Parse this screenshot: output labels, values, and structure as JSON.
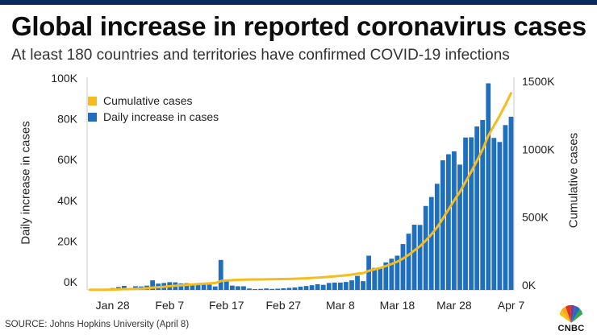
{
  "header": {
    "title": "Global increase in reported coronavirus cases",
    "subtitle": "At least 180 countries and territories have confirmed COVID-19 infections"
  },
  "source": "SOURCE: Johns Hopkins University (April 8)",
  "logo": {
    "text": "CNBC",
    "icon": "peacock-icon"
  },
  "colors": {
    "bars": "#1f6fbf",
    "line": "#f5bc1c",
    "topbar": "#0a2a5c"
  },
  "chart_data": {
    "type": "bar",
    "title": "Global increase in reported coronavirus cases",
    "ylabel": "Daily increase in cases",
    "y2label": "Cumulative cases",
    "ylim": [
      0,
      100000
    ],
    "y2lim": [
      0,
      1500000
    ],
    "yticks": [
      "0K",
      "20K",
      "40K",
      "60K",
      "80K",
      "100K"
    ],
    "y2ticks": [
      "0K",
      "500K",
      "1000K",
      "1500K"
    ],
    "xticks": [
      "Jan 28",
      "Feb 7",
      "Feb 17",
      "Feb 27",
      "Mar 8",
      "Mar 18",
      "Mar 28",
      "Apr 7"
    ],
    "legend": [
      "Cumulative cases",
      "Daily increase in cases"
    ],
    "series": [
      {
        "name": "Daily increase in cases",
        "values": [
          0,
          100,
          300,
          600,
          900,
          1400,
          2000,
          600,
          1800,
          1700,
          2100,
          4700,
          3100,
          3400,
          3800,
          3700,
          3200,
          3300,
          3000,
          2700,
          3000,
          2600,
          1700,
          14700,
          5000,
          2100,
          1800,
          1800,
          700,
          400,
          500,
          700,
          500,
          600,
          800,
          1000,
          1200,
          1600,
          1900,
          2300,
          2800,
          2500,
          3400,
          3600,
          3600,
          3900,
          4700,
          6900,
          4300,
          16800,
          10800,
          11000,
          13500,
          15300,
          16800,
          22500,
          27600,
          32000,
          31900,
          41200,
          45600,
          52100,
          63600,
          66600,
          68000,
          61500,
          74800,
          74900,
          80200,
          83400,
          101400,
          74600,
          72600,
          80900,
          85000
        ]
      },
      {
        "name": "Cumulative cases",
        "values": [
          555,
          655,
          955,
          1555,
          2455,
          3855,
          5855,
          6455,
          8255,
          9955,
          12055,
          16755,
          19855,
          23255,
          27055,
          30755,
          33955,
          37255,
          40255,
          42955,
          45955,
          48555,
          50255,
          64955,
          69955,
          72055,
          73855,
          75655,
          76355,
          76755,
          77255,
          77955,
          78455,
          79055,
          79855,
          80855,
          82055,
          83655,
          85555,
          87855,
          90655,
          93155,
          96555,
          100155,
          103755,
          107655,
          112355,
          119255,
          123555,
          140355,
          151155,
          162155,
          175655,
          190955,
          207755,
          230255,
          257855,
          289855,
          321755,
          362955,
          408555,
          460655,
          524255,
          590855,
          658855,
          720355,
          795155,
          870055,
          950255,
          1033655,
          1135055,
          1209655,
          1282255,
          1363155,
          1448155
        ]
      }
    ]
  }
}
